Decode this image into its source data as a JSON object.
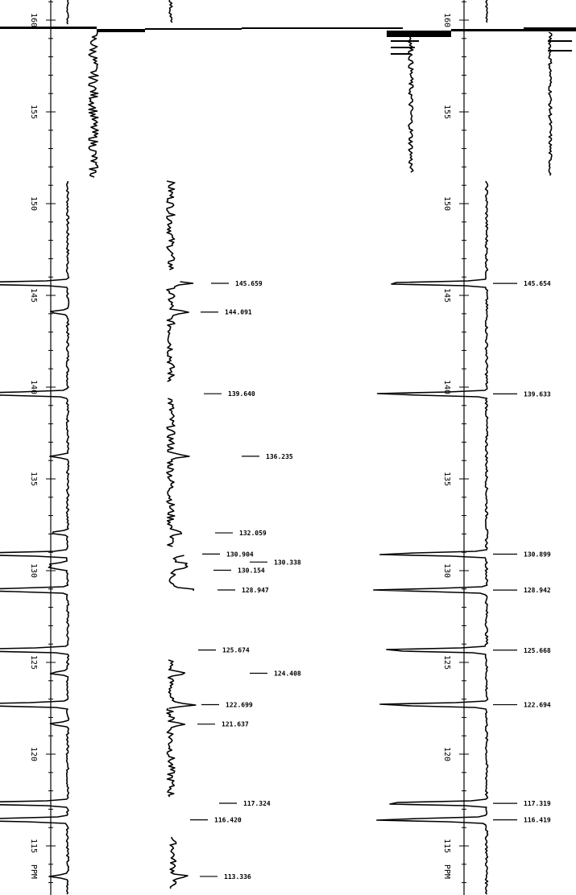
{
  "chart_data": [
    {
      "type": "line",
      "title": "",
      "xlabel": "PPM",
      "ylabel": "",
      "xlim": [
        162,
        112
      ],
      "axis_ticks": [
        "160",
        "155",
        "150",
        "145",
        "140",
        "135",
        "130",
        "125",
        "120",
        "115"
      ],
      "axis_unit": "PPM",
      "peaks": [
        {
          "ppm": 145.659,
          "label": "145.659"
        },
        {
          "ppm": 144.091,
          "label": "144.091"
        },
        {
          "ppm": 139.64,
          "label": "139.640"
        },
        {
          "ppm": 136.235,
          "label": "136.235"
        },
        {
          "ppm": 132.059,
          "label": "132.059"
        },
        {
          "ppm": 130.904,
          "label": "130.904"
        },
        {
          "ppm": 130.338,
          "label": "130.338"
        },
        {
          "ppm": 130.154,
          "label": "130.154"
        },
        {
          "ppm": 128.947,
          "label": "128.947"
        },
        {
          "ppm": 125.674,
          "label": "125.674"
        },
        {
          "ppm": 124.408,
          "label": "124.408"
        },
        {
          "ppm": 122.699,
          "label": "122.699"
        },
        {
          "ppm": 121.637,
          "label": "121.637"
        },
        {
          "ppm": 117.324,
          "label": "117.324"
        },
        {
          "ppm": 116.42,
          "label": "116.420"
        },
        {
          "ppm": 113.336,
          "label": "113.336"
        }
      ]
    },
    {
      "type": "line",
      "title": "",
      "xlabel": "PPM",
      "ylabel": "",
      "xlim": [
        162,
        112
      ],
      "axis_ticks": [
        "160",
        "155",
        "150",
        "145",
        "140",
        "135",
        "130",
        "125",
        "120",
        "115"
      ],
      "axis_unit": "PPM",
      "peaks": [
        {
          "ppm": 145.654,
          "label": "145.654"
        },
        {
          "ppm": 139.633,
          "label": "139.633"
        },
        {
          "ppm": 130.899,
          "label": "130.899"
        },
        {
          "ppm": 128.942,
          "label": "128.942"
        },
        {
          "ppm": 125.668,
          "label": "125.668"
        },
        {
          "ppm": 122.694,
          "label": "122.694"
        },
        {
          "ppm": 117.319,
          "label": "117.319"
        },
        {
          "ppm": 116.419,
          "label": "116.419"
        }
      ]
    }
  ]
}
